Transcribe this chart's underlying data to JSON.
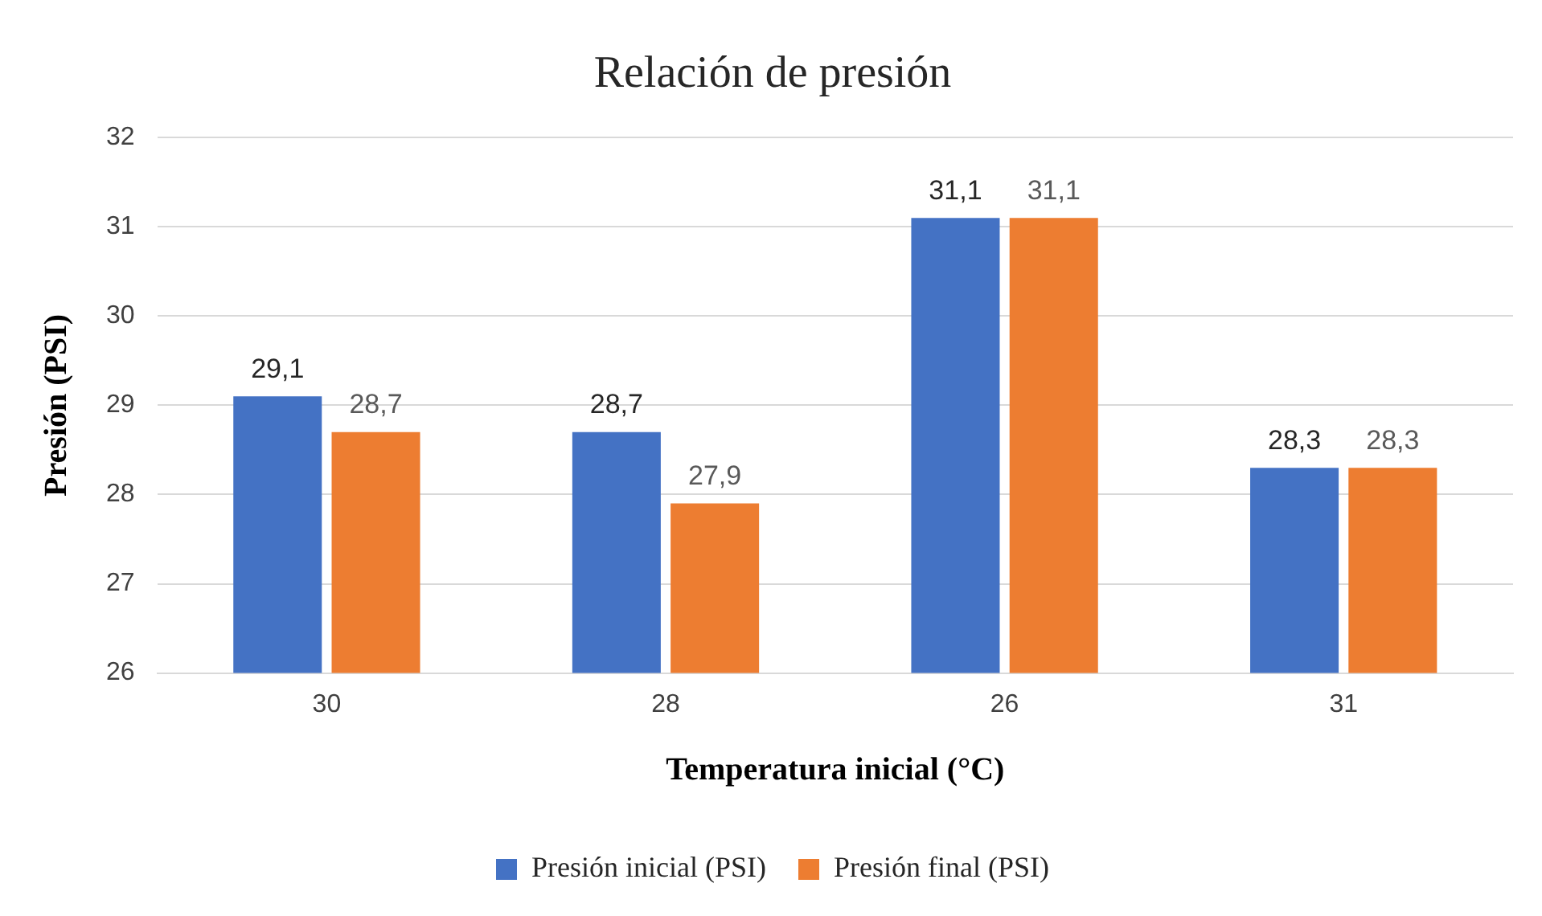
{
  "chart_data": {
    "type": "bar",
    "title": "Relación de presión",
    "xlabel": "Temperatura inicial (°C)",
    "ylabel": "Presión (PSI)",
    "categories": [
      "30",
      "28",
      "26",
      "31"
    ],
    "series": [
      {
        "name": "Presión inicial (PSI)",
        "color": "#4472c4",
        "values": [
          29.1,
          28.7,
          31.1,
          28.3
        ],
        "value_labels": [
          "29,1",
          "28,7",
          "31,1",
          "28,3"
        ]
      },
      {
        "name": "Presión final (PSI)",
        "color": "#ed7d31",
        "values": [
          28.7,
          27.9,
          31.1,
          28.3
        ],
        "value_labels": [
          "28,7",
          "27,9",
          "31,1",
          "28,3"
        ]
      }
    ],
    "ylim": [
      26,
      32
    ],
    "yticks": [
      26,
      27,
      28,
      29,
      30,
      31,
      32
    ],
    "grid": "y",
    "legend": "bottom"
  }
}
